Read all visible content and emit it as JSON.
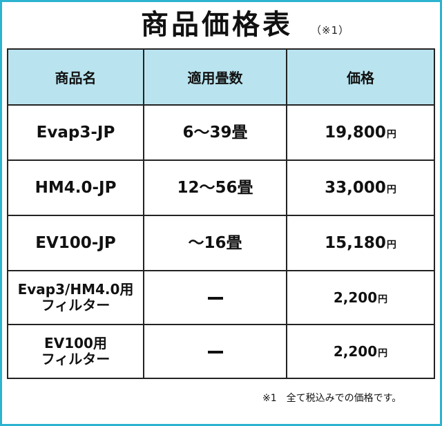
{
  "title": "商品価格表",
  "title_note": "（※1）",
  "table": {
    "headers": [
      "商品名",
      "適用畳数",
      "価格"
    ],
    "yen_unit": "円",
    "rows": [
      {
        "name_lines": [
          "Evap3-JP"
        ],
        "tatami": "6〜39畳",
        "price": "19,800"
      },
      {
        "name_lines": [
          "HM4.0-JP"
        ],
        "tatami": "12〜56畳",
        "price": "33,000"
      },
      {
        "name_lines": [
          "EV100-JP"
        ],
        "tatami": "〜16畳",
        "price": "15,180"
      },
      {
        "name_lines": [
          "Evap3/HM4.0用",
          "フィルター"
        ],
        "tatami": "",
        "price": "2,200"
      },
      {
        "name_lines": [
          "EV100用",
          "フィルター"
        ],
        "tatami": "",
        "price": "2,200"
      }
    ]
  },
  "footnote": "※1　全て税込みでの価格です。",
  "colors": {
    "frame": "#2bb3cf",
    "header_bg": "#b9e4ef"
  }
}
